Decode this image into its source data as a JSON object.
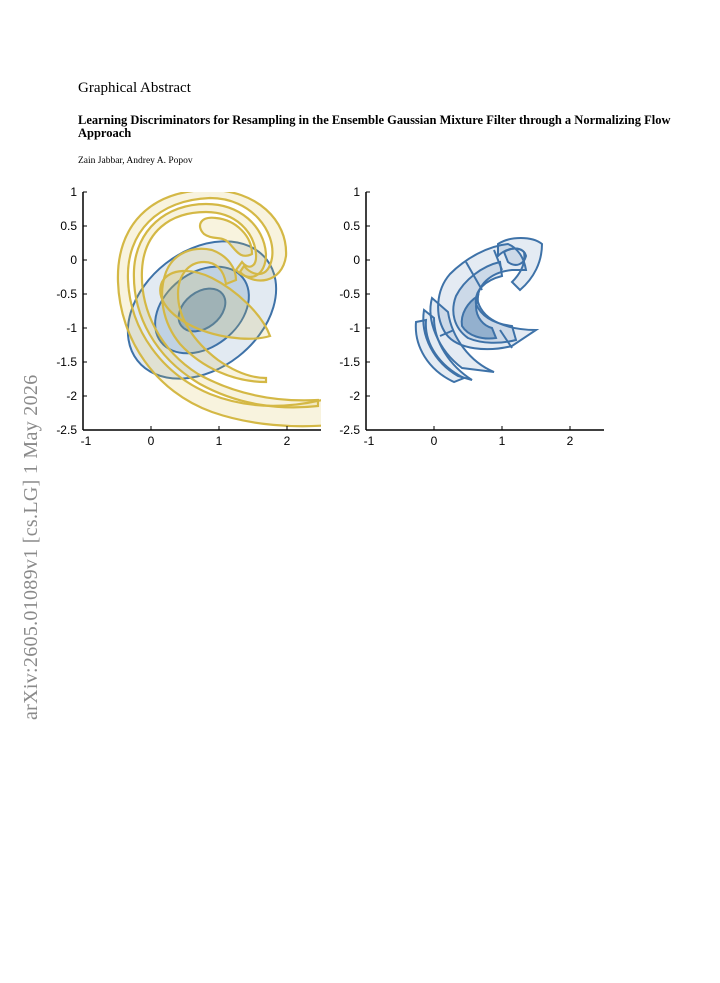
{
  "header": {
    "section_title": "Graphical Abstract",
    "paper_title": "Learning Discriminators for Resampling in the Ensemble Gaussian Mixture Filter through a Normalizing Flow Approach",
    "authors": "Zain Jabbar, Andrey A. Popov"
  },
  "stamp": {
    "text": "arXiv:2605.01089v1  [cs.LG]  1 May 2026"
  },
  "colors": {
    "blue": "#3e72a8",
    "yellow": "#d9bd4a",
    "stamp_gray": "#8a8a8a"
  },
  "chart_data": [
    {
      "type": "contour",
      "xlim": [
        -1,
        2.5
      ],
      "ylim": [
        -2.5,
        1
      ],
      "xticks": [
        "-1",
        "0",
        "1",
        "2"
      ],
      "yticks": [
        "1",
        "0.5",
        "0",
        "-0.5",
        "-1",
        "-1.5",
        "-2",
        "-2.5"
      ],
      "series": [
        {
          "color": "#3e72a8",
          "shape": "nested ellipses",
          "levels": 3
        },
        {
          "color": "#d9bd4a",
          "shape": "spiral bands",
          "levels": 3
        }
      ]
    },
    {
      "type": "contour",
      "xlim": [
        -1,
        2.5
      ],
      "ylim": [
        -2.5,
        1
      ],
      "xticks": [
        "-1",
        "0",
        "1",
        "2"
      ],
      "yticks": [
        "1",
        "0.5",
        "0",
        "-0.5",
        "-1",
        "-1.5",
        "-2",
        "-2.5"
      ],
      "series": [
        {
          "color": "#3e72a8",
          "shape": "curved segmented bands",
          "levels": 3
        }
      ]
    }
  ]
}
